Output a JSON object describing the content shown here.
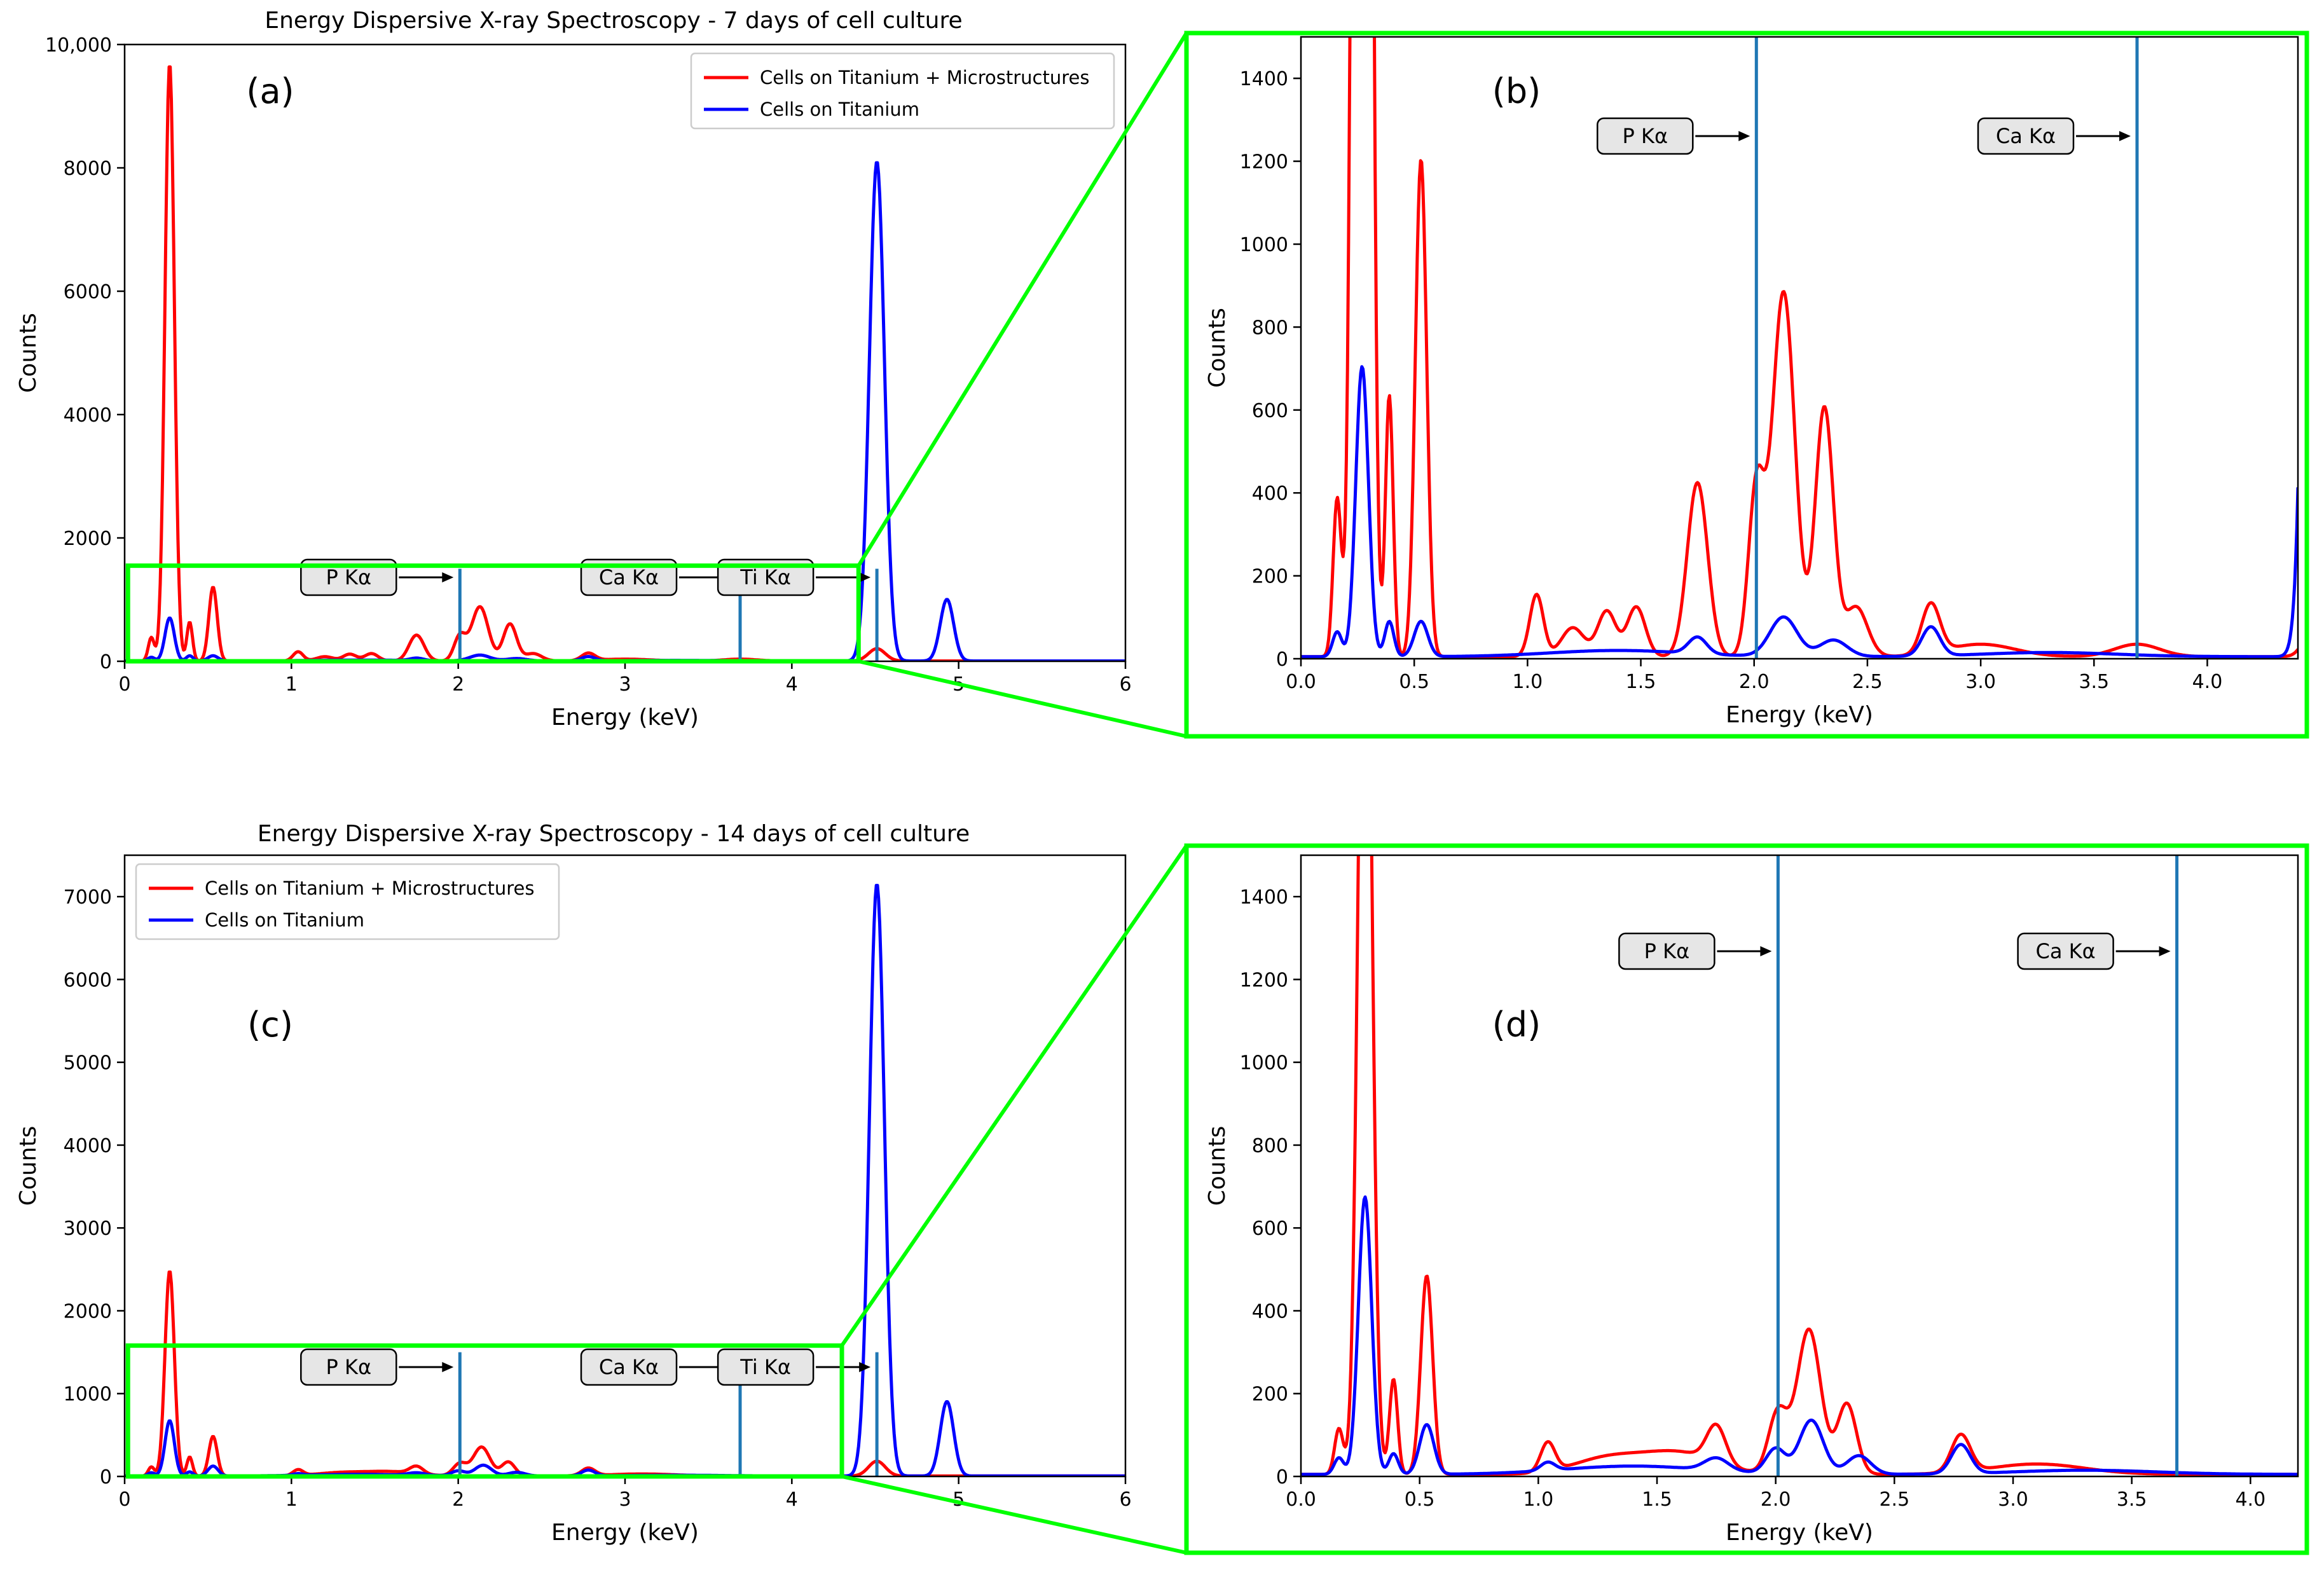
{
  "figure": {
    "title_top": "Energy Dispersive X-ray Spectroscopy - 7 days of cell culture",
    "title_bottom": "Energy Dispersive X-ray Spectroscopy - 14 days of cell culture",
    "colors": {
      "red": "#ff0000",
      "blue": "#0000ff",
      "marker": "#1f77b4",
      "zoom": "#00ff00",
      "box_fill": "#e6e6e6"
    },
    "legend_red": "Cells on Titanium + Microstructures",
    "legend_blue": "Cells on Titanium",
    "ann_p": "P Kα",
    "ann_ca": "Ca Kα",
    "ann_ti": "Ti Kα"
  },
  "chart_data": [
    {
      "id": "a",
      "type": "line",
      "panel_label": "(a)",
      "title": "Energy Dispersive X-ray Spectroscopy - 7 days of cell culture",
      "xlabel": "Energy (keV)",
      "ylabel": "Counts",
      "xlim": [
        0,
        6
      ],
      "ylim": [
        0,
        10000
      ],
      "xticks": [
        0,
        1,
        2,
        3,
        4,
        5,
        6
      ],
      "xtick_labels": [
        "0",
        "1",
        "2",
        "3",
        "4",
        "5",
        "6"
      ],
      "yticks": [
        0,
        2000,
        4000,
        6000,
        8000,
        10000
      ],
      "ytick_labels": [
        "0",
        "2000",
        "4000",
        "6000",
        "8000",
        "10,000"
      ],
      "legend": "upper right",
      "grid": false,
      "markers": [
        {
          "label": "P Kα",
          "x": 2.01
        },
        {
          "label": "Ca Kα",
          "x": 3.69
        },
        {
          "label": "Ti Kα",
          "x": 4.51
        }
      ],
      "zoom_box": {
        "x": [
          0.02,
          4.4
        ],
        "y": [
          0,
          1550
        ]
      },
      "series": [
        {
          "name": "Cells on Titanium + Microstructures",
          "color": "#ff0000",
          "baseline": 5,
          "peaks": [
            [
              0.16,
              380,
              0.018
            ],
            [
              0.27,
              9700,
              0.028
            ],
            [
              0.39,
              630,
              0.017
            ],
            [
              0.53,
              1200,
              0.025
            ],
            [
              1.04,
              150,
              0.03
            ],
            [
              1.2,
              70,
              0.05
            ],
            [
              1.35,
              110,
              0.04
            ],
            [
              1.48,
              120,
              0.04
            ],
            [
              1.75,
              420,
              0.045
            ],
            [
              2.01,
              400,
              0.035
            ],
            [
              2.13,
              880,
              0.05
            ],
            [
              2.31,
              600,
              0.04
            ],
            [
              2.45,
              120,
              0.05
            ],
            [
              2.78,
              120,
              0.04
            ],
            [
              3.0,
              30,
              0.15
            ],
            [
              3.69,
              30,
              0.1
            ],
            [
              4.51,
              200,
              0.05
            ]
          ]
        },
        {
          "name": "Cells on Titanium",
          "color": "#0000ff",
          "baseline": 5,
          "peaks": [
            [
              0.16,
              60,
              0.02
            ],
            [
              0.27,
              700,
              0.028
            ],
            [
              0.39,
              85,
              0.02
            ],
            [
              0.53,
              85,
              0.03
            ],
            [
              1.4,
              15,
              0.3
            ],
            [
              1.75,
              40,
              0.04
            ],
            [
              2.13,
              95,
              0.06
            ],
            [
              2.35,
              40,
              0.06
            ],
            [
              2.78,
              70,
              0.04
            ],
            [
              3.3,
              10,
              0.3
            ],
            [
              4.51,
              8100,
              0.045
            ],
            [
              4.93,
              1000,
              0.04
            ]
          ]
        }
      ]
    },
    {
      "id": "b",
      "type": "line",
      "panel_label": "(b)",
      "xlabel": "Energy (keV)",
      "ylabel": "Counts",
      "xlim": [
        0,
        4.4
      ],
      "ylim": [
        0,
        1500
      ],
      "xticks": [
        0,
        0.5,
        1,
        1.5,
        2,
        2.5,
        3,
        3.5,
        4
      ],
      "xtick_labels": [
        "0.0",
        "0.5",
        "1.0",
        "1.5",
        "2.0",
        "2.5",
        "3.0",
        "3.5",
        "4.0"
      ],
      "yticks": [
        0,
        200,
        400,
        600,
        800,
        1000,
        1200,
        1400
      ],
      "ytick_labels": [
        "0",
        "200",
        "400",
        "600",
        "800",
        "1000",
        "1200",
        "1400"
      ],
      "grid": false,
      "markers": [
        {
          "label": "P Kα",
          "x": 2.01
        },
        {
          "label": "Ca Kα",
          "x": 3.69
        }
      ],
      "same_data_as": "a"
    },
    {
      "id": "c",
      "type": "line",
      "panel_label": "(c)",
      "title": "Energy Dispersive X-ray Spectroscopy - 14 days of cell culture",
      "xlabel": "Energy (keV)",
      "ylabel": "Counts",
      "xlim": [
        0,
        6
      ],
      "ylim": [
        0,
        7500
      ],
      "xticks": [
        0,
        1,
        2,
        3,
        4,
        5,
        6
      ],
      "xtick_labels": [
        "0",
        "1",
        "2",
        "3",
        "4",
        "5",
        "6"
      ],
      "yticks": [
        0,
        1000,
        2000,
        3000,
        4000,
        5000,
        6000,
        7000
      ],
      "ytick_labels": [
        "0",
        "1000",
        "2000",
        "3000",
        "4000",
        "5000",
        "6000",
        "7000"
      ],
      "legend": "upper left",
      "grid": false,
      "markers": [
        {
          "label": "P Kα",
          "x": 2.01
        },
        {
          "label": "Ca Kα",
          "x": 3.69
        },
        {
          "label": "Ti Kα",
          "x": 4.51
        }
      ],
      "zoom_box": {
        "x": [
          0.02,
          4.3
        ],
        "y": [
          0,
          1580
        ]
      },
      "series": [
        {
          "name": "Cells on Titanium + Microstructures",
          "color": "#ff0000",
          "baseline": 5,
          "peaks": [
            [
              0.16,
              110,
              0.018
            ],
            [
              0.27,
              2480,
              0.028
            ],
            [
              0.39,
              230,
              0.017
            ],
            [
              0.53,
              480,
              0.025
            ],
            [
              1.04,
              70,
              0.03
            ],
            [
              1.3,
              40,
              0.15
            ],
            [
              1.6,
              50,
              0.15
            ],
            [
              1.75,
              90,
              0.04
            ],
            [
              2.01,
              150,
              0.04
            ],
            [
              2.14,
              350,
              0.05
            ],
            [
              2.3,
              170,
              0.04
            ],
            [
              2.78,
              90,
              0.04
            ],
            [
              3.1,
              25,
              0.2
            ],
            [
              4.51,
              180,
              0.05
            ]
          ]
        },
        {
          "name": "Cells on Titanium",
          "color": "#0000ff",
          "baseline": 5,
          "peaks": [
            [
              0.16,
              40,
              0.02
            ],
            [
              0.27,
              670,
              0.028
            ],
            [
              0.39,
              50,
              0.02
            ],
            [
              0.53,
              120,
              0.03
            ],
            [
              1.04,
              20,
              0.03
            ],
            [
              1.4,
              20,
              0.3
            ],
            [
              1.75,
              30,
              0.05
            ],
            [
              2.0,
              60,
              0.04
            ],
            [
              2.15,
              130,
              0.05
            ],
            [
              2.35,
              45,
              0.05
            ],
            [
              2.78,
              70,
              0.04
            ],
            [
              3.3,
              10,
              0.3
            ],
            [
              4.51,
              7150,
              0.045
            ],
            [
              4.93,
              900,
              0.04
            ]
          ]
        }
      ]
    },
    {
      "id": "d",
      "type": "line",
      "panel_label": "(d)",
      "xlabel": "Energy (keV)",
      "ylabel": "Counts",
      "xlim": [
        0,
        4.2
      ],
      "ylim": [
        0,
        1500
      ],
      "xticks": [
        0,
        0.5,
        1,
        1.5,
        2,
        2.5,
        3,
        3.5,
        4
      ],
      "xtick_labels": [
        "0.0",
        "0.5",
        "1.0",
        "1.5",
        "2.0",
        "2.5",
        "3.0",
        "3.5",
        "4.0"
      ],
      "yticks": [
        0,
        200,
        400,
        600,
        800,
        1000,
        1200,
        1400
      ],
      "ytick_labels": [
        "0",
        "200",
        "400",
        "600",
        "800",
        "1000",
        "1200",
        "1400"
      ],
      "grid": false,
      "markers": [
        {
          "label": "P Kα",
          "x": 2.01
        },
        {
          "label": "Ca Kα",
          "x": 3.69
        }
      ],
      "same_data_as": "c"
    }
  ]
}
